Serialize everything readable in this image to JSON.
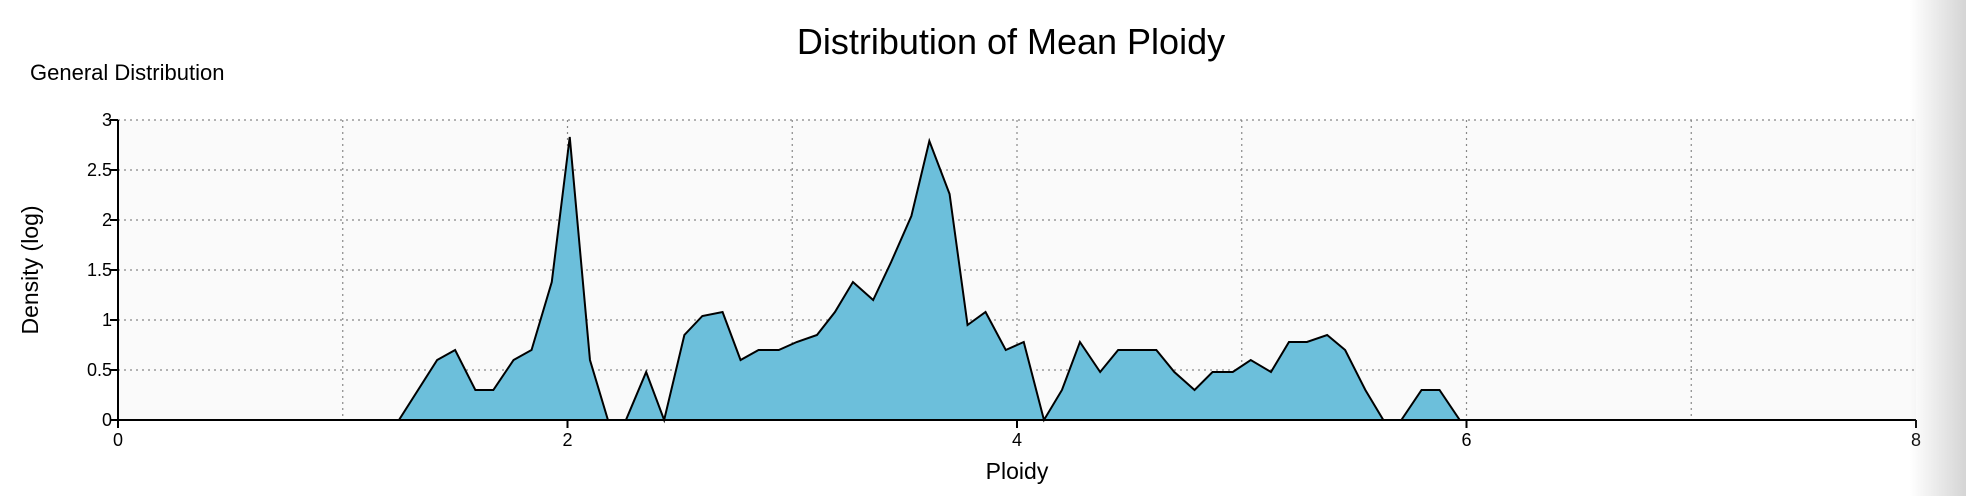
{
  "page": {
    "title": "Distribution of Mean Ploidy",
    "subtitle": "General Distribution"
  },
  "colors": {
    "fill": "#6cbfdb",
    "stroke": "#000000",
    "plot_background": "#fafafa",
    "grid": "#888888"
  },
  "chart_data": {
    "type": "area",
    "title": "Distribution of Mean Ploidy",
    "xlabel": "Ploidy",
    "ylabel": "Density (log)",
    "xlim": [
      0,
      8
    ],
    "ylim": [
      0,
      3
    ],
    "x_ticks": [
      "0",
      "2",
      "4",
      "6",
      "8"
    ],
    "y_ticks": [
      "0",
      "0.5",
      "1",
      "1.5",
      "2",
      "2.5",
      "3"
    ],
    "grid": "dotted, x every 1, y every 0.5",
    "series": [
      {
        "x": [
          0,
          1.25,
          1.42,
          1.5,
          1.59,
          1.67,
          1.76,
          1.84,
          1.93,
          2.01,
          2.1,
          2.18,
          2.26,
          2.35,
          2.43,
          2.52,
          2.6,
          2.69,
          2.77,
          2.85,
          2.94,
          3.02,
          3.11,
          3.19,
          3.27,
          3.36,
          3.44,
          3.53,
          3.61,
          3.7,
          3.78,
          3.86,
          3.95,
          4.03,
          4.12,
          4.2,
          4.28,
          4.37,
          4.45,
          4.54,
          4.62,
          4.7,
          4.79,
          4.87,
          4.96,
          5.04,
          5.13,
          5.21,
          5.29,
          5.38,
          5.46,
          5.55,
          5.63,
          5.71,
          5.8,
          5.88,
          5.97,
          8
        ],
        "y": [
          0,
          0,
          0.6,
          0.7,
          0.3,
          0.3,
          0.6,
          0.7,
          1.38,
          2.83,
          0.6,
          0,
          0,
          0.48,
          0,
          0.85,
          1.04,
          1.08,
          0.6,
          0.7,
          0.7,
          0.78,
          0.85,
          1.08,
          1.38,
          1.2,
          1.58,
          2.04,
          2.79,
          2.26,
          0.95,
          1.08,
          0.7,
          0.78,
          0,
          0.3,
          0.78,
          0.48,
          0.7,
          0.7,
          0.7,
          0.48,
          0.3,
          0.48,
          0.48,
          0.6,
          0.48,
          0.78,
          0.78,
          0.85,
          0.7,
          0.3,
          0,
          0,
          0.3,
          0.3,
          0,
          0
        ]
      }
    ]
  }
}
